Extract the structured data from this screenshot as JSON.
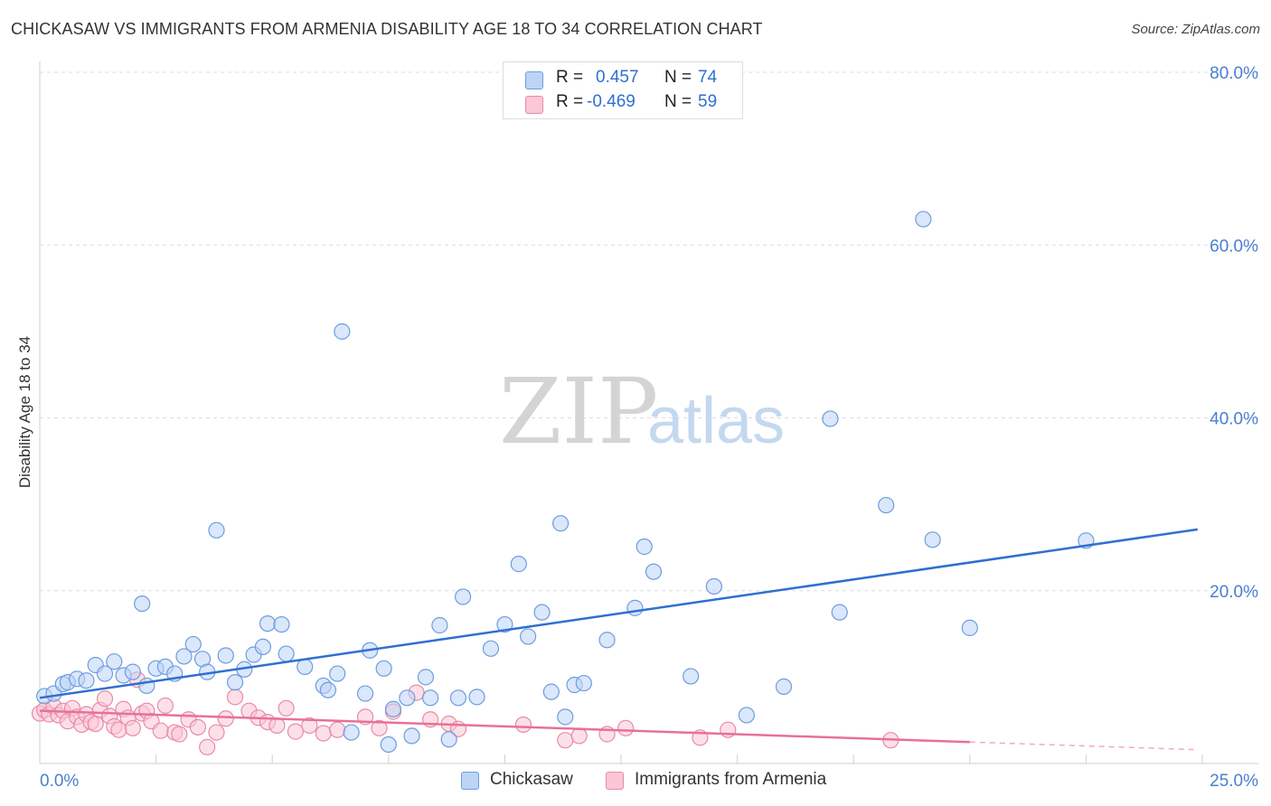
{
  "header": {
    "title": "CHICKASAW VS IMMIGRANTS FROM ARMENIA DISABILITY AGE 18 TO 34 CORRELATION CHART",
    "source": "Source: ZipAtlas.com"
  },
  "watermark": {
    "zip": "ZIP",
    "atlas": "atlas"
  },
  "stats": [
    {
      "r_label": "R =",
      "r_value": "0.457",
      "n_label": "N =",
      "n_value": "74"
    },
    {
      "r_label": "R =",
      "r_value": "-0.469",
      "n_label": "N =",
      "n_value": "59"
    }
  ],
  "legend": {
    "series1": "Chickasaw",
    "series2": "Immigrants from Armenia"
  },
  "colors": {
    "blue_fill": "#bdd4f5",
    "blue_stroke": "#6c9de0",
    "blue_line": "#2f6fd1",
    "pink_fill": "#f9c7d6",
    "pink_stroke": "#ea8aa8",
    "pink_line": "#e8709a",
    "tick_text": "#4a7fd0",
    "grid": "#dcdcdc"
  },
  "chart_data": {
    "type": "scatter",
    "title": "CHICKASAW VS IMMIGRANTS FROM ARMENIA DISABILITY AGE 18 TO 34 CORRELATION CHART",
    "xlabel": "",
    "ylabel": "Disability Age 18 to 34",
    "xlim": [
      0,
      25
    ],
    "ylim": [
      0,
      80
    ],
    "x_tick_labels": [
      {
        "value": 0,
        "label": "0.0%"
      },
      {
        "value": 25,
        "label": "25.0%"
      }
    ],
    "y_tick_labels": [
      {
        "value": 20,
        "label": "20.0%"
      },
      {
        "value": 40,
        "label": "40.0%"
      },
      {
        "value": 60,
        "label": "60.0%"
      },
      {
        "value": 80,
        "label": "80.0%"
      }
    ],
    "grid": true,
    "legend_position": "bottom-center",
    "series": [
      {
        "name": "Chickasaw",
        "color": "#6c9de0",
        "r": 0.457,
        "n": 74,
        "trend": {
          "x": [
            0,
            24.9
          ],
          "y": [
            7.6,
            27.1
          ],
          "dashed_from": null
        },
        "points": [
          [
            0.1,
            7.8
          ],
          [
            0.3,
            8.1
          ],
          [
            0.5,
            9.2
          ],
          [
            0.6,
            9.4
          ],
          [
            0.8,
            9.8
          ],
          [
            1.0,
            9.6
          ],
          [
            1.2,
            11.4
          ],
          [
            1.4,
            10.4
          ],
          [
            1.6,
            11.8
          ],
          [
            1.8,
            10.2
          ],
          [
            2.0,
            10.6
          ],
          [
            2.2,
            18.5
          ],
          [
            2.3,
            9.0
          ],
          [
            2.5,
            11.0
          ],
          [
            2.7,
            11.2
          ],
          [
            2.9,
            10.4
          ],
          [
            3.1,
            12.4
          ],
          [
            3.3,
            13.8
          ],
          [
            3.5,
            12.1
          ],
          [
            3.6,
            10.6
          ],
          [
            3.8,
            27.0
          ],
          [
            4.0,
            12.5
          ],
          [
            4.2,
            9.4
          ],
          [
            4.4,
            10.9
          ],
          [
            4.6,
            12.6
          ],
          [
            4.8,
            13.5
          ],
          [
            4.9,
            16.2
          ],
          [
            5.2,
            16.1
          ],
          [
            5.3,
            12.7
          ],
          [
            5.7,
            11.2
          ],
          [
            6.1,
            9.0
          ],
          [
            6.2,
            8.5
          ],
          [
            6.4,
            10.4
          ],
          [
            6.5,
            50.0
          ],
          [
            6.7,
            3.6
          ],
          [
            7.0,
            8.1
          ],
          [
            7.1,
            13.1
          ],
          [
            7.4,
            11.0
          ],
          [
            7.5,
            2.2
          ],
          [
            7.6,
            6.3
          ],
          [
            7.9,
            7.6
          ],
          [
            8.0,
            3.2
          ],
          [
            8.3,
            10.0
          ],
          [
            8.4,
            7.6
          ],
          [
            8.6,
            16.0
          ],
          [
            8.8,
            2.8
          ],
          [
            9.0,
            7.6
          ],
          [
            9.1,
            19.3
          ],
          [
            9.4,
            7.7
          ],
          [
            9.7,
            13.3
          ],
          [
            10.0,
            16.1
          ],
          [
            10.3,
            23.1
          ],
          [
            10.5,
            14.7
          ],
          [
            10.8,
            17.5
          ],
          [
            11.0,
            8.3
          ],
          [
            11.2,
            27.8
          ],
          [
            11.3,
            5.4
          ],
          [
            11.5,
            9.1
          ],
          [
            11.7,
            9.3
          ],
          [
            12.2,
            14.3
          ],
          [
            12.8,
            18.0
          ],
          [
            13.0,
            25.1
          ],
          [
            13.2,
            22.2
          ],
          [
            14.0,
            10.1
          ],
          [
            14.5,
            20.5
          ],
          [
            15.2,
            5.6
          ],
          [
            16.0,
            8.9
          ],
          [
            17.0,
            39.9
          ],
          [
            17.2,
            17.5
          ],
          [
            18.2,
            29.9
          ],
          [
            19.0,
            63.0
          ],
          [
            19.2,
            25.9
          ],
          [
            20.0,
            15.7
          ],
          [
            22.5,
            25.8
          ]
        ]
      },
      {
        "name": "Immigrants from Armenia",
        "color": "#ea8aa8",
        "r": -0.469,
        "n": 59,
        "trend": {
          "x": [
            0,
            24.9
          ],
          "y": [
            6.1,
            1.6
          ],
          "dashed_from": 20.0
        },
        "points": [
          [
            0.0,
            5.8
          ],
          [
            0.1,
            6.2
          ],
          [
            0.2,
            5.7
          ],
          [
            0.3,
            6.6
          ],
          [
            0.4,
            5.6
          ],
          [
            0.5,
            6.1
          ],
          [
            0.6,
            4.9
          ],
          [
            0.7,
            6.4
          ],
          [
            0.8,
            5.4
          ],
          [
            0.9,
            4.5
          ],
          [
            1.0,
            5.7
          ],
          [
            1.1,
            4.8
          ],
          [
            1.2,
            4.6
          ],
          [
            1.3,
            6.2
          ],
          [
            1.4,
            7.5
          ],
          [
            1.5,
            5.5
          ],
          [
            1.6,
            4.3
          ],
          [
            1.7,
            3.9
          ],
          [
            1.8,
            6.3
          ],
          [
            1.9,
            5.3
          ],
          [
            2.0,
            4.1
          ],
          [
            2.1,
            9.7
          ],
          [
            2.2,
            5.8
          ],
          [
            2.3,
            6.1
          ],
          [
            2.4,
            4.9
          ],
          [
            2.6,
            3.8
          ],
          [
            2.7,
            6.7
          ],
          [
            2.9,
            3.6
          ],
          [
            3.0,
            3.4
          ],
          [
            3.2,
            5.1
          ],
          [
            3.4,
            4.2
          ],
          [
            3.6,
            1.9
          ],
          [
            3.8,
            3.6
          ],
          [
            4.0,
            5.2
          ],
          [
            4.2,
            7.7
          ],
          [
            4.5,
            6.1
          ],
          [
            4.7,
            5.3
          ],
          [
            4.9,
            4.8
          ],
          [
            5.1,
            4.4
          ],
          [
            5.3,
            6.4
          ],
          [
            5.5,
            3.7
          ],
          [
            5.8,
            4.4
          ],
          [
            6.1,
            3.5
          ],
          [
            6.4,
            3.9
          ],
          [
            7.0,
            5.4
          ],
          [
            7.3,
            4.1
          ],
          [
            7.6,
            6.0
          ],
          [
            8.1,
            8.2
          ],
          [
            8.4,
            5.1
          ],
          [
            8.8,
            4.6
          ],
          [
            9.0,
            4.0
          ],
          [
            10.4,
            4.5
          ],
          [
            11.3,
            2.7
          ],
          [
            11.6,
            3.2
          ],
          [
            12.2,
            3.4
          ],
          [
            12.6,
            4.1
          ],
          [
            14.2,
            3.0
          ],
          [
            14.8,
            3.9
          ],
          [
            18.3,
            2.7
          ]
        ]
      }
    ]
  }
}
